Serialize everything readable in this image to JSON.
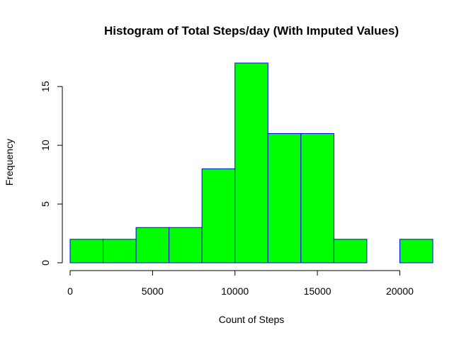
{
  "chart_data": {
    "type": "bar",
    "title": "Histogram of Total Steps/day (With Imputed Values)",
    "xlabel": "Count of Steps",
    "ylabel": "Frequency",
    "bin_edges": [
      0,
      2000,
      4000,
      6000,
      8000,
      10000,
      12000,
      14000,
      16000,
      18000,
      20000,
      22000
    ],
    "values": [
      2,
      2,
      3,
      3,
      8,
      17,
      11,
      11,
      2,
      0,
      2
    ],
    "xlim": [
      0,
      22000
    ],
    "ylim": [
      0,
      17
    ],
    "x_ticks": [
      0,
      5000,
      10000,
      15000,
      20000
    ],
    "x_tick_labels": [
      "0",
      "5000",
      "10000",
      "15000",
      "20000"
    ],
    "y_ticks": [
      0,
      5,
      10,
      15
    ],
    "y_tick_labels": [
      "0",
      "5",
      "10",
      "15"
    ],
    "bar_fill": "#00ff00",
    "bar_border": "#0000ff",
    "grid": false
  }
}
